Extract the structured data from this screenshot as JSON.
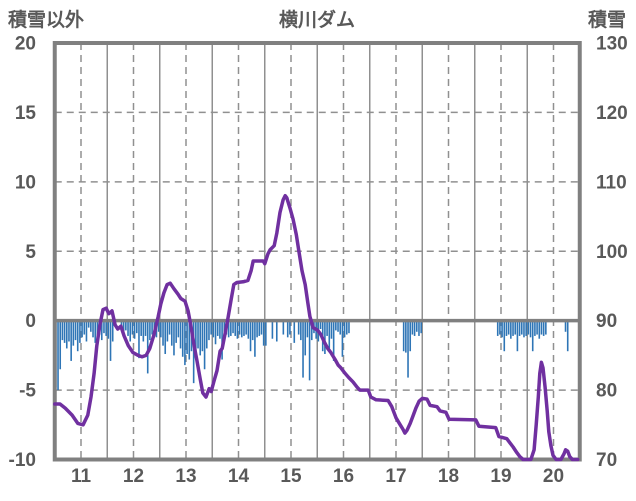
{
  "header": {
    "left_axis_label": "積雪以外",
    "title": "横川ダム",
    "right_axis_label": "積雪"
  },
  "chart_data": {
    "type": "mixed",
    "title": "横川ダム",
    "x_axis": {
      "tick_labels": [
        "11",
        "12",
        "13",
        "14",
        "15",
        "16",
        "17",
        "18",
        "19",
        "20"
      ],
      "range_days": [
        11,
        21
      ],
      "solid_gridlines_at": "day boundaries",
      "dashed_gridlines_at": "middays (label positions)"
    },
    "left_axis": {
      "label": "積雪以外",
      "ticks": [
        20,
        15,
        10,
        5,
        0,
        -5,
        -10
      ],
      "range": [
        -10,
        20
      ],
      "zero_line": "thick solid"
    },
    "right_axis": {
      "label": "積雪",
      "ticks": [
        130,
        120,
        110,
        100,
        90,
        80,
        70
      ],
      "range": [
        70,
        130
      ]
    },
    "series": [
      {
        "name": "hourly-bars",
        "type": "bar",
        "axis": "left",
        "color": "#2e75b6",
        "description": "hourly bars hanging below the zero line",
        "bars_by_day": {
          "11": [
            -4.8,
            -5.0,
            -3.5,
            -1.4,
            -1.6,
            -2.0,
            -1.5,
            -2.9,
            -1.8,
            -1.4,
            -2.2,
            -1.6,
            -1.2,
            -1.0,
            -1.5,
            -0.5,
            -0.8,
            -1.2,
            -1.6,
            -1.3,
            -1.0,
            -1.4,
            -0.9,
            -1.1
          ],
          "12": [
            -1.3,
            -2.9,
            -1.5,
            0,
            0,
            0,
            -0.7,
            -0.9,
            -0.7,
            -1.1,
            -1.5,
            -1.0,
            -1.3,
            -0.9,
            -2.7,
            -1.1,
            -1.5,
            -1.1,
            -3.8,
            -1.4,
            -1.0,
            -0.9,
            -1.2,
            -0.8
          ],
          "13": [
            -1.2,
            -1.8,
            -2.4,
            -1.5,
            -1.0,
            -1.8,
            -2.5,
            -1.6,
            -1.2,
            -2.0,
            -2.6,
            -3.2,
            -2.4,
            -2.8,
            -2.2,
            -4.5,
            -2.4,
            -2.0,
            -2.5,
            -2.2,
            -3.5,
            -2.0,
            -1.4,
            -1.0
          ],
          "14": [
            -1.2,
            -1.7,
            -1.1,
            -1.3,
            -2.8,
            -1.1,
            -1.0,
            -1.2,
            -1.1,
            -0.9,
            -1.1,
            -1.3,
            -1.0,
            -1.2,
            -1.1,
            -1.0,
            -1.3,
            -2.2,
            -1.4,
            -2.6,
            -1.2,
            -1.1,
            -1.0,
            -1.8
          ],
          "15": [
            -1.8,
            0,
            0,
            -1.3,
            0,
            -1.5,
            0,
            0,
            -1.0,
            0,
            -1.2,
            -1.0,
            0,
            -1.6,
            0,
            -1.0,
            -1.4,
            -4.1,
            -2.5,
            -1.2,
            -4.3,
            -1.4,
            -0.9,
            -1.3
          ],
          "16": [
            -1.5,
            -0.6,
            -2.2,
            -2.4,
            -1.1,
            -2.0,
            -1.3,
            -2.9,
            -0.7,
            -0.8,
            -1.0,
            -2.6,
            -1.2,
            -1.0,
            -0.9,
            0,
            0,
            0,
            0,
            0,
            0,
            0,
            0,
            0
          ],
          "17": [
            0,
            0,
            0,
            0,
            0,
            0,
            0,
            0,
            0,
            0,
            0,
            0,
            0,
            0,
            0,
            -2.2,
            -2.3,
            -4.1,
            -2.2,
            -1.0,
            -1.1,
            -0.8,
            -1.1,
            -0.9
          ],
          "18": [
            0,
            0,
            0,
            0,
            0,
            0,
            0,
            0,
            0,
            0,
            0,
            0,
            0,
            0,
            0,
            0,
            0,
            0,
            0,
            0,
            0,
            0,
            0,
            0
          ],
          "19": [
            0,
            0,
            0,
            0,
            0,
            0,
            0,
            0,
            0,
            0,
            -1.1,
            -1.0,
            -1.2,
            -2.2,
            -1.1,
            -1.0,
            -1.3,
            -1.1,
            -1.0,
            -2.2,
            -1.1,
            -1.0,
            -1.2,
            -1.1
          ],
          "20": [
            -1.0,
            -1.2,
            -2.2,
            -1.1,
            -1.0,
            -1.3,
            -1.0,
            -1.1,
            -1.0,
            0,
            0,
            0,
            0,
            0,
            0,
            0,
            0,
            -0.8,
            -2.2,
            0,
            0,
            0,
            0,
            0
          ]
        }
      },
      {
        "name": "snow-depth-line",
        "type": "line",
        "axis": "right",
        "color": "#7030a0",
        "points": [
          [
            11.0,
            78
          ],
          [
            11.1,
            78
          ],
          [
            11.2,
            77.4
          ],
          [
            11.33,
            76.4
          ],
          [
            11.44,
            75.2
          ],
          [
            11.54,
            75
          ],
          [
            11.63,
            76.4
          ],
          [
            11.69,
            79
          ],
          [
            11.75,
            82.4
          ],
          [
            11.8,
            86.4
          ],
          [
            11.86,
            89.4
          ],
          [
            11.92,
            91.6
          ],
          [
            11.98,
            91.8
          ],
          [
            12.03,
            91
          ],
          [
            12.09,
            91.4
          ],
          [
            12.15,
            89.4
          ],
          [
            12.2,
            88.8
          ],
          [
            12.26,
            89.2
          ],
          [
            12.32,
            87.8
          ],
          [
            12.4,
            86.4
          ],
          [
            12.49,
            85.4
          ],
          [
            12.59,
            85
          ],
          [
            12.66,
            84.8
          ],
          [
            12.74,
            85
          ],
          [
            12.81,
            86
          ],
          [
            12.89,
            88
          ],
          [
            12.97,
            90.6
          ],
          [
            13.02,
            92.4
          ],
          [
            13.08,
            94
          ],
          [
            13.14,
            95.2
          ],
          [
            13.2,
            95.4
          ],
          [
            13.27,
            94.6
          ],
          [
            13.35,
            93.8
          ],
          [
            13.4,
            93.2
          ],
          [
            13.48,
            92.8
          ],
          [
            13.54,
            91.4
          ],
          [
            13.6,
            89
          ],
          [
            13.65,
            86.6
          ],
          [
            13.71,
            84.2
          ],
          [
            13.77,
            81.6
          ],
          [
            13.82,
            79.6
          ],
          [
            13.88,
            79
          ],
          [
            13.94,
            80.2
          ],
          [
            13.98,
            79.8
          ],
          [
            14.03,
            81.2
          ],
          [
            14.09,
            82.8
          ],
          [
            14.15,
            85.6
          ],
          [
            14.19,
            86
          ],
          [
            14.24,
            88
          ],
          [
            14.3,
            90.4
          ],
          [
            14.36,
            93
          ],
          [
            14.41,
            95.2
          ],
          [
            14.47,
            95.5
          ],
          [
            14.59,
            95.6
          ],
          [
            14.68,
            95.8
          ],
          [
            14.74,
            97.2
          ],
          [
            14.78,
            98.6
          ],
          [
            14.91,
            98.6
          ],
          [
            14.97,
            98.6
          ],
          [
            15.0,
            98.2
          ],
          [
            15.06,
            99.6
          ],
          [
            15.1,
            100.2
          ],
          [
            15.18,
            100.8
          ],
          [
            15.23,
            102.6
          ],
          [
            15.29,
            105.6
          ],
          [
            15.35,
            107.4
          ],
          [
            15.39,
            108
          ],
          [
            15.42,
            107.7
          ],
          [
            15.48,
            106.2
          ],
          [
            15.54,
            104.6
          ],
          [
            15.6,
            102.4
          ],
          [
            15.65,
            100
          ],
          [
            15.71,
            97.2
          ],
          [
            15.77,
            95.2
          ],
          [
            15.82,
            92.6
          ],
          [
            15.86,
            90.6
          ],
          [
            15.92,
            89
          ],
          [
            16.01,
            88.6
          ],
          [
            16.07,
            88
          ],
          [
            16.13,
            87
          ],
          [
            16.2,
            86
          ],
          [
            16.26,
            85.4
          ],
          [
            16.34,
            84.4
          ],
          [
            16.4,
            83.6
          ],
          [
            16.45,
            83.2
          ],
          [
            16.53,
            82.4
          ],
          [
            16.6,
            81.8
          ],
          [
            16.68,
            81.2
          ],
          [
            16.76,
            80.4
          ],
          [
            16.81,
            80
          ],
          [
            16.97,
            80
          ],
          [
            17.02,
            79
          ],
          [
            17.12,
            78.6
          ],
          [
            17.35,
            78.5
          ],
          [
            17.42,
            77.6
          ],
          [
            17.5,
            76
          ],
          [
            17.58,
            75
          ],
          [
            17.63,
            74.4
          ],
          [
            17.67,
            73.8
          ],
          [
            17.71,
            74.2
          ],
          [
            17.77,
            75.2
          ],
          [
            17.82,
            76.2
          ],
          [
            17.88,
            77.4
          ],
          [
            17.94,
            78.4
          ],
          [
            18.0,
            78.8
          ],
          [
            18.09,
            78.7
          ],
          [
            18.15,
            77.8
          ],
          [
            18.28,
            77.6
          ],
          [
            18.34,
            77
          ],
          [
            18.45,
            76.8
          ],
          [
            18.51,
            75.8
          ],
          [
            19.02,
            75.7
          ],
          [
            19.08,
            74.8
          ],
          [
            19.4,
            74.6
          ],
          [
            19.46,
            73.3
          ],
          [
            19.61,
            73
          ],
          [
            19.67,
            72.4
          ],
          [
            19.73,
            71.8
          ],
          [
            19.8,
            71
          ],
          [
            19.86,
            70.4
          ],
          [
            19.92,
            70
          ],
          [
            20.07,
            70
          ],
          [
            20.13,
            71.4
          ],
          [
            20.17,
            75
          ],
          [
            20.21,
            79
          ],
          [
            20.24,
            82.4
          ],
          [
            20.27,
            84
          ],
          [
            20.3,
            83.2
          ],
          [
            20.34,
            80.4
          ],
          [
            20.38,
            77
          ],
          [
            20.41,
            74
          ],
          [
            20.45,
            72
          ],
          [
            20.49,
            70.6
          ],
          [
            20.55,
            70
          ],
          [
            20.64,
            70
          ],
          [
            20.7,
            70.8
          ],
          [
            20.73,
            71.4
          ],
          [
            20.77,
            71.2
          ],
          [
            20.81,
            70.4
          ],
          [
            20.86,
            70
          ],
          [
            20.96,
            70
          ]
        ]
      }
    ],
    "grid": {
      "legend": "none",
      "grid_on": true
    },
    "colors": {
      "bar": "#2e75b6",
      "line": "#7030a0",
      "gridline": "#909090",
      "frame": "#808080",
      "zero_line": "#808080",
      "text": "#595959"
    }
  }
}
